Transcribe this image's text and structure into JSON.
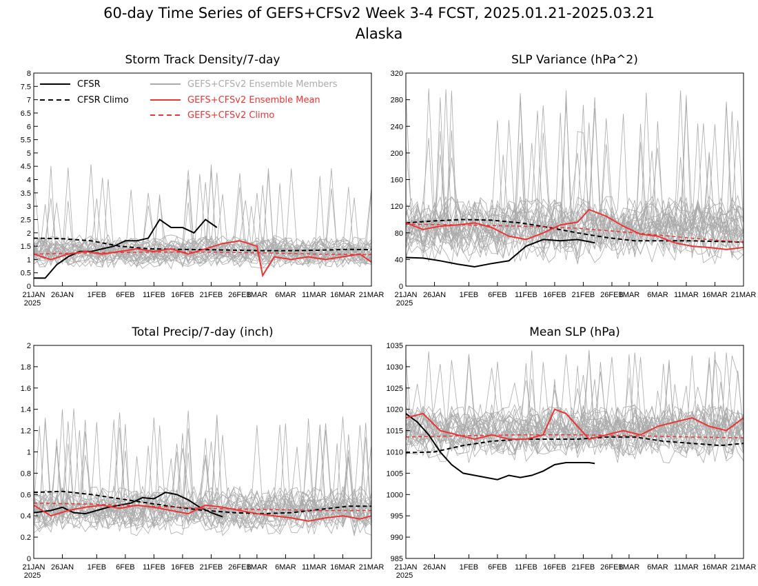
{
  "figure": {
    "title": "60-day Time Series of GEFS+CFSv2 Week 3-4 FCST, 2025.01.21-2025.03.21",
    "subtitle": "Alaska"
  },
  "legend": {
    "cfsr": "CFSR",
    "cfsr_climo": "CFSR Climo",
    "members": "GEFS+CFSv2 Ensemble Members",
    "mean": "GEFS+CFSv2 Ensemble Mean",
    "climo": "GEFS+CFSv2 Climo"
  },
  "colors": {
    "cfsr": "#000000",
    "members": "#aaaaaa",
    "mean": "#ee3333",
    "background": "#ffffff"
  },
  "x_axis": {
    "ticks": [
      "21JAN",
      "26JAN",
      "1FEB",
      "6FEB",
      "11FEB",
      "16FEB",
      "21FEB",
      "26FEB",
      "1MAR",
      "6MAR",
      "11MAR",
      "16MAR",
      "21MAR"
    ],
    "tick_days": [
      0,
      5,
      11,
      16,
      21,
      26,
      31,
      36,
      39,
      44,
      49,
      54,
      59
    ],
    "year_label": "2025",
    "start_date": "2025-01-21",
    "days": 60
  },
  "chart_data": [
    {
      "type": "line",
      "title": "Storm Track Density/7-day",
      "ylim": [
        0,
        8
      ],
      "yticks": [
        "0",
        "0.5",
        "1",
        "1.5",
        "2",
        "2.5",
        "3",
        "3.5",
        "4",
        "4.5",
        "5",
        "5.5",
        "6",
        "6.5",
        "7",
        "7.5",
        "8"
      ],
      "member_band": {
        "center": 1.3,
        "spread": 0.55,
        "max": 4.6,
        "count": 28
      },
      "series": [
        {
          "name": "CFSR",
          "x_days": [
            0,
            2,
            4,
            6,
            8,
            10,
            12,
            14,
            16,
            18,
            20,
            22,
            24,
            26,
            28,
            30,
            32
          ],
          "values": [
            0.3,
            0.3,
            0.8,
            1.1,
            1.3,
            1.3,
            1.4,
            1.5,
            1.7,
            1.7,
            1.8,
            2.5,
            2.2,
            2.2,
            2.0,
            2.5,
            2.2
          ]
        },
        {
          "name": "CFSR Climo",
          "x_days": [
            0,
            5,
            10,
            15,
            20,
            25,
            30,
            35,
            40,
            45,
            50,
            55,
            59
          ],
          "values": [
            1.8,
            1.78,
            1.7,
            1.5,
            1.4,
            1.38,
            1.37,
            1.35,
            1.33,
            1.33,
            1.35,
            1.38,
            1.37
          ]
        },
        {
          "name": "GEFS+CFSv2 Ensemble Mean",
          "x_days": [
            0,
            3,
            6,
            9,
            12,
            15,
            18,
            21,
            24,
            27,
            30,
            33,
            36,
            39,
            40,
            42,
            45,
            48,
            51,
            54,
            57,
            59
          ],
          "values": [
            1.2,
            1.0,
            1.2,
            1.3,
            1.2,
            1.3,
            1.4,
            1.3,
            1.4,
            1.2,
            1.4,
            1.6,
            1.7,
            1.5,
            0.4,
            1.1,
            1.0,
            1.1,
            1.0,
            1.1,
            1.2,
            0.9
          ]
        },
        {
          "name": "GEFS+CFSv2 Climo",
          "x_days": [
            0,
            10,
            20,
            30,
            40,
            50,
            59
          ],
          "values": [
            1.2,
            1.25,
            1.28,
            1.28,
            1.25,
            1.2,
            1.18
          ]
        }
      ]
    },
    {
      "type": "line",
      "title": "SLP Variance (hPa^2)",
      "ylim": [
        0,
        320
      ],
      "yticks": [
        "0",
        "40",
        "80",
        "120",
        "160",
        "200",
        "240",
        "280",
        "320"
      ],
      "member_band": {
        "center": 85,
        "spread": 45,
        "max": 298,
        "count": 28
      },
      "series": [
        {
          "name": "CFSR",
          "x_days": [
            0,
            3,
            6,
            9,
            12,
            15,
            18,
            21,
            24,
            27,
            30,
            33
          ],
          "values": [
            43,
            42,
            38,
            33,
            29,
            34,
            38,
            60,
            70,
            68,
            70,
            65
          ]
        },
        {
          "name": "CFSR Climo",
          "x_days": [
            0,
            5,
            10,
            15,
            20,
            25,
            30,
            35,
            40,
            45,
            50,
            55,
            59
          ],
          "values": [
            95,
            98,
            100,
            99,
            95,
            88,
            80,
            73,
            68,
            68,
            68,
            67,
            66
          ]
        },
        {
          "name": "GEFS+CFSv2 Ensemble Mean",
          "x_days": [
            0,
            3,
            6,
            9,
            12,
            15,
            18,
            21,
            24,
            27,
            30,
            32,
            35,
            38,
            41,
            44,
            47,
            50,
            53,
            56,
            59
          ],
          "values": [
            95,
            85,
            90,
            92,
            95,
            88,
            75,
            70,
            80,
            92,
            96,
            115,
            105,
            90,
            78,
            75,
            65,
            60,
            58,
            55,
            58
          ]
        },
        {
          "name": "GEFS+CFSv2 Climo",
          "x_days": [
            0,
            10,
            20,
            30,
            40,
            50,
            59
          ],
          "values": [
            93,
            92,
            90,
            87,
            80,
            72,
            66
          ]
        }
      ]
    },
    {
      "type": "line",
      "title": "Total Precip/7-day (inch)",
      "ylim": [
        0,
        2
      ],
      "yticks": [
        "0",
        "0.2",
        "0.4",
        "0.6",
        "0.8",
        "1",
        "1.2",
        "1.4",
        "1.6",
        "1.8",
        "2"
      ],
      "member_band": {
        "center": 0.45,
        "spread": 0.2,
        "max": 1.42,
        "count": 28
      },
      "series": [
        {
          "name": "CFSR",
          "x_days": [
            0,
            3,
            5,
            7,
            9,
            11,
            13,
            15,
            17,
            19,
            21,
            23,
            25,
            27,
            29,
            31,
            33
          ],
          "values": [
            0.43,
            0.45,
            0.48,
            0.43,
            0.42,
            0.45,
            0.48,
            0.5,
            0.52,
            0.57,
            0.56,
            0.62,
            0.6,
            0.55,
            0.48,
            0.43,
            0.39
          ]
        },
        {
          "name": "CFSR Climo",
          "x_days": [
            0,
            5,
            10,
            15,
            20,
            25,
            30,
            35,
            40,
            45,
            50,
            55,
            59
          ],
          "values": [
            0.62,
            0.63,
            0.6,
            0.56,
            0.52,
            0.48,
            0.45,
            0.43,
            0.42,
            0.43,
            0.46,
            0.49,
            0.49
          ]
        },
        {
          "name": "GEFS+CFSv2 Ensemble Mean",
          "x_days": [
            0,
            3,
            6,
            9,
            12,
            15,
            18,
            21,
            24,
            27,
            30,
            33,
            36,
            39,
            42,
            45,
            48,
            51,
            54,
            57,
            59
          ],
          "values": [
            0.5,
            0.4,
            0.45,
            0.48,
            0.5,
            0.47,
            0.5,
            0.48,
            0.45,
            0.42,
            0.5,
            0.48,
            0.45,
            0.42,
            0.4,
            0.38,
            0.35,
            0.38,
            0.4,
            0.37,
            0.4
          ]
        },
        {
          "name": "GEFS+CFSv2 Climo",
          "x_days": [
            0,
            10,
            20,
            30,
            40,
            50,
            59
          ],
          "values": [
            0.52,
            0.51,
            0.49,
            0.47,
            0.46,
            0.45,
            0.45
          ]
        }
      ]
    },
    {
      "type": "line",
      "title": "Mean SLP (hPa)",
      "ylim": [
        985,
        1035
      ],
      "yticks": [
        "985",
        "990",
        "995",
        "1000",
        "1005",
        "1010",
        "1015",
        "1020",
        "1025",
        "1030",
        "1035"
      ],
      "member_band": {
        "center": 1014.5,
        "spread": 6,
        "max": 1034,
        "count": 28
      },
      "series": [
        {
          "name": "CFSR",
          "x_days": [
            0,
            2,
            4,
            6,
            8,
            10,
            12,
            14,
            16,
            18,
            20,
            22,
            24,
            26,
            28,
            30,
            32,
            33
          ],
          "values": [
            1019,
            1017,
            1014,
            1010,
            1007,
            1005,
            1004.5,
            1004,
            1003.5,
            1004.5,
            1004,
            1004.5,
            1005.5,
            1007,
            1007.5,
            1007.5,
            1007.5,
            1007.3
          ]
        },
        {
          "name": "CFSR Climo",
          "x_days": [
            0,
            5,
            10,
            15,
            20,
            25,
            30,
            35,
            40,
            45,
            50,
            55,
            59
          ],
          "values": [
            1009.8,
            1010,
            1011.5,
            1012.5,
            1013,
            1013,
            1013,
            1013.5,
            1013.5,
            1012.5,
            1012,
            1011.5,
            1012
          ]
        },
        {
          "name": "GEFS+CFSv2 Ensemble Mean",
          "x_days": [
            0,
            3,
            6,
            9,
            12,
            15,
            18,
            21,
            24,
            26,
            28,
            30,
            32,
            35,
            38,
            41,
            44,
            47,
            50,
            53,
            56,
            59
          ],
          "values": [
            1018,
            1019,
            1015,
            1014,
            1013,
            1014,
            1013,
            1013,
            1014,
            1020,
            1019,
            1016,
            1013,
            1014,
            1015,
            1014,
            1016,
            1017,
            1018,
            1016,
            1015,
            1018
          ]
        },
        {
          "name": "GEFS+CFSv2 Climo",
          "x_days": [
            0,
            10,
            20,
            30,
            40,
            50,
            59
          ],
          "values": [
            1013.5,
            1013.8,
            1014,
            1014,
            1013.8,
            1013.5,
            1013.3
          ]
        }
      ]
    }
  ]
}
